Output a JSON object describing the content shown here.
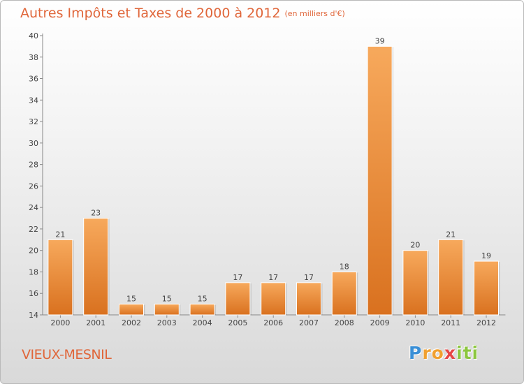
{
  "title": "Autres Impôts et Taxes de 2000 à 2012",
  "unit": "(en milliers d'€)",
  "commune": "VIEUX-MESNIL",
  "logo": {
    "letters": [
      "P",
      "r",
      "o",
      "x",
      "i",
      "t",
      "i"
    ],
    "colors": [
      "#3a8fd6",
      "#f0a030",
      "#f0a030",
      "#e64646",
      "#8cc63f",
      "#8cc63f",
      "#8cc63f"
    ]
  },
  "colors": {
    "title": "#e0663a",
    "bar_top": "#f7a95c",
    "bar_bottom": "#d9711f"
  },
  "chart_data": {
    "type": "bar",
    "categories": [
      "2000",
      "2001",
      "2002",
      "2003",
      "2004",
      "2005",
      "2006",
      "2007",
      "2008",
      "2009",
      "2010",
      "2011",
      "2012"
    ],
    "values": [
      21,
      23,
      15,
      15,
      15,
      17,
      17,
      17,
      18,
      39,
      20,
      21,
      19
    ],
    "ylim": [
      14,
      40
    ],
    "yticks": [
      14,
      16,
      18,
      20,
      22,
      24,
      26,
      28,
      30,
      32,
      34,
      36,
      38,
      40
    ],
    "grid": false,
    "legend": "none"
  }
}
